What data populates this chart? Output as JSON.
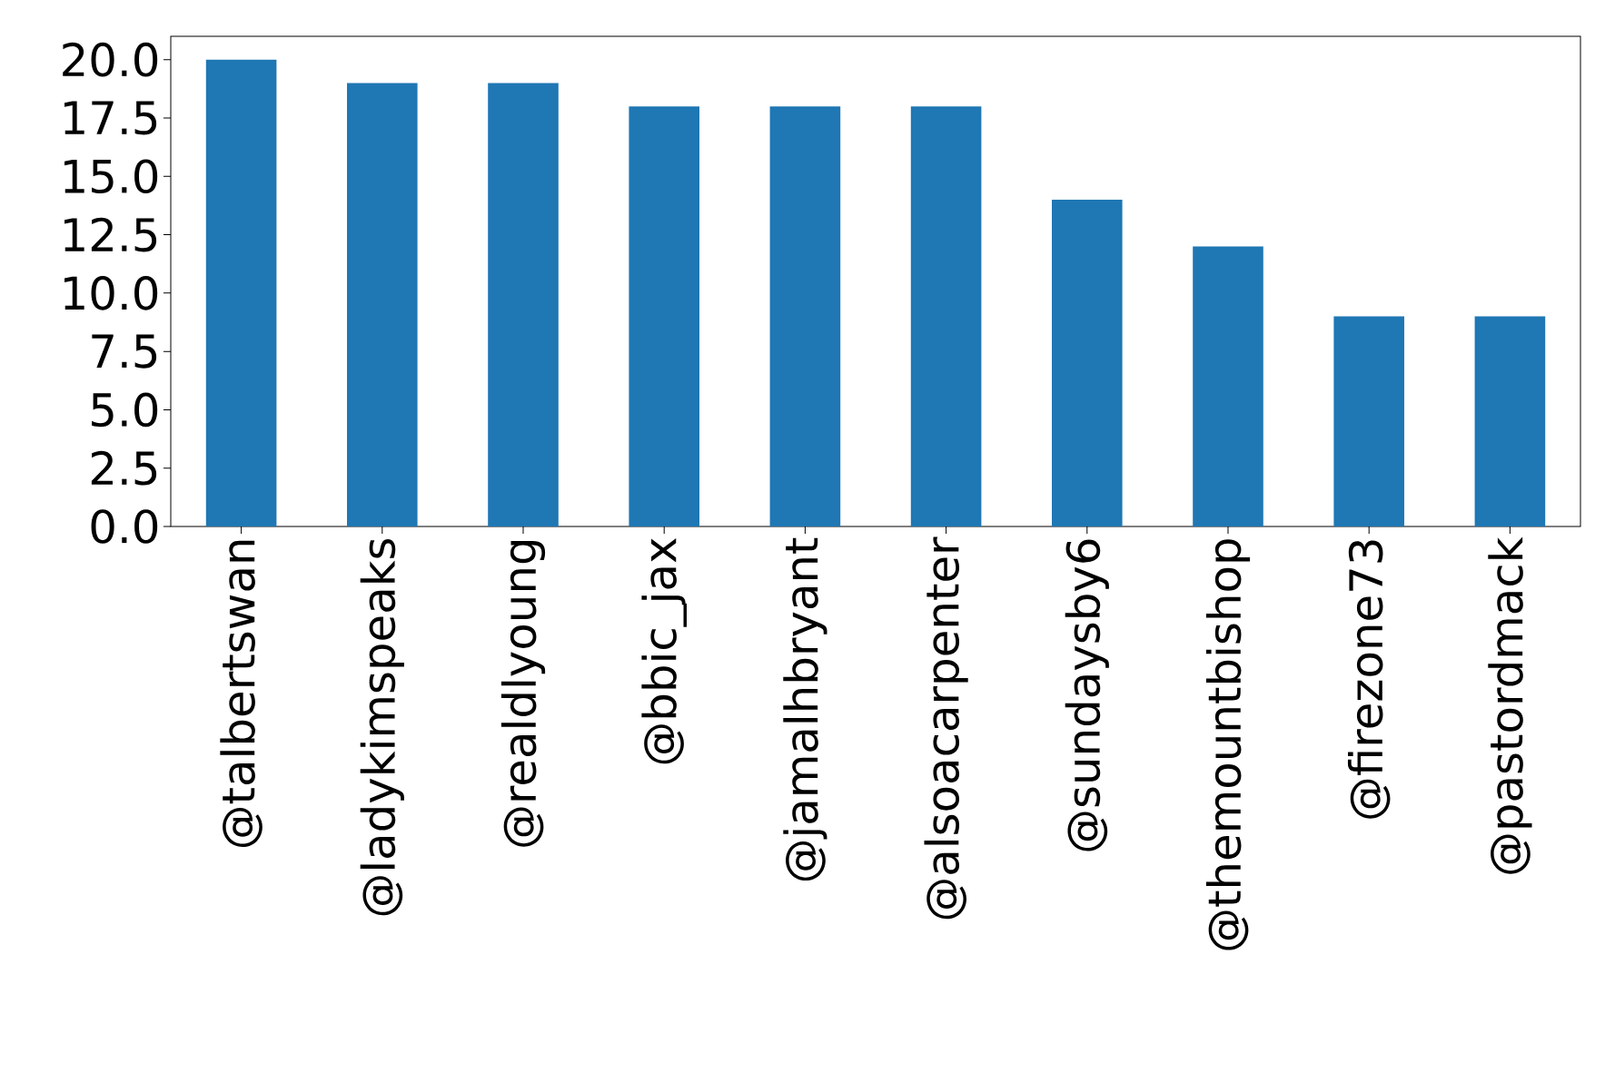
{
  "chart_data": {
    "type": "bar",
    "categories": [
      "@talbertswan",
      "@ladykimspeaks",
      "@realdlyoung",
      "@bbic_jax",
      "@jamalhbryant",
      "@alsoacarpenter",
      "@sundaysby6",
      "@themountbishop",
      "@firezone73",
      "@pastordmack"
    ],
    "values": [
      20,
      19,
      19,
      18,
      18,
      18,
      14,
      12,
      9,
      9
    ],
    "color": "#1f77b4",
    "ylim": [
      0,
      21
    ],
    "yticks": [
      {
        "value": 0,
        "label": "0.0"
      },
      {
        "value": 2.5,
        "label": "2.5"
      },
      {
        "value": 5,
        "label": "5.0"
      },
      {
        "value": 7.5,
        "label": "7.5"
      },
      {
        "value": 10,
        "label": "10.0"
      },
      {
        "value": 12.5,
        "label": "12.5"
      },
      {
        "value": 15,
        "label": "15.0"
      },
      {
        "value": 17.5,
        "label": "17.5"
      },
      {
        "value": 20,
        "label": "20.0"
      }
    ],
    "grid": false
  }
}
